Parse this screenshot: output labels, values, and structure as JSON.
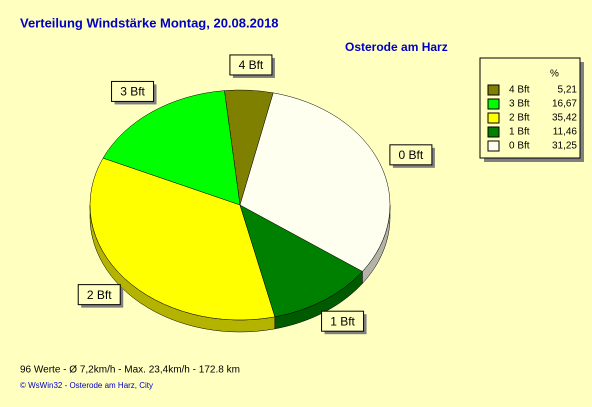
{
  "chart_data": {
    "type": "pie",
    "title": "Verteilung Windstärke  Montag, 20.08.2018",
    "subtitle": "Osterode am Harz",
    "legend_title": "%",
    "categories": [
      "4 Bft",
      "3 Bft",
      "2 Bft",
      "1 Bft",
      "0 Bft"
    ],
    "values": [
      5.21,
      16.67,
      35.42,
      11.46,
      31.25
    ],
    "value_labels": [
      "5,21",
      "16,67",
      "35,42",
      "11,46",
      "31,25"
    ],
    "colors": [
      "#808000",
      "#00ff00",
      "#ffff00",
      "#008000",
      "#fffff0"
    ],
    "footer": "96 Werte   -   Ø 7,2km/h  -  Max. 23,4km/h   -   172.8 km",
    "credit": "© WsWin32  -  Osterode am Harz, City"
  }
}
